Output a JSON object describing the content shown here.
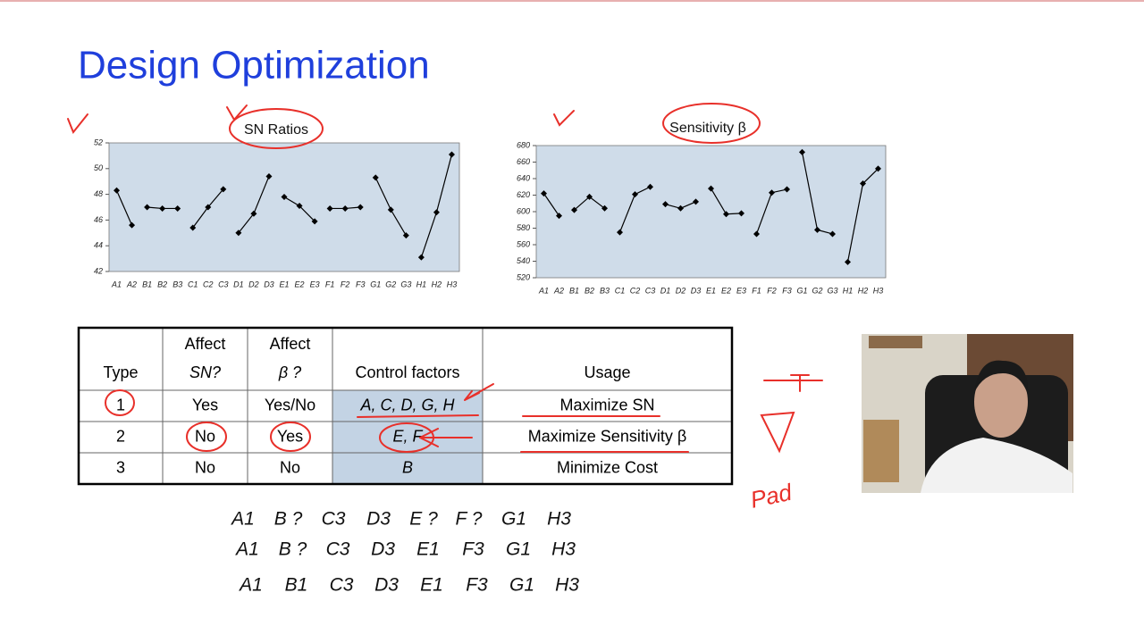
{
  "title": "Design Optimization",
  "chart_data": [
    {
      "type": "line",
      "title": "SN Ratios",
      "categories": [
        "A1",
        "A2",
        "B1",
        "B2",
        "B3",
        "C1",
        "C2",
        "C3",
        "D1",
        "D2",
        "D3",
        "E1",
        "E2",
        "E3",
        "F1",
        "F2",
        "F3",
        "G1",
        "G2",
        "G3",
        "H1",
        "H2",
        "H3"
      ],
      "color": "#000000",
      "plot_background": "#cfdce9",
      "ylim": [
        42,
        52
      ],
      "yticks": [
        42,
        44,
        46,
        48,
        50,
        52
      ],
      "series": [
        {
          "values": [
            48.3,
            45.6,
            null,
            null,
            null,
            null,
            null,
            null,
            null,
            null,
            null,
            null,
            null,
            null,
            null,
            null,
            null,
            null,
            null,
            null,
            null,
            null,
            null
          ]
        },
        {
          "values": [
            null,
            null,
            47,
            46.9,
            46.9,
            null,
            null,
            null,
            null,
            null,
            null,
            null,
            null,
            null,
            null,
            null,
            null,
            null,
            null,
            null,
            null,
            null,
            null
          ]
        },
        {
          "values": [
            null,
            null,
            null,
            null,
            null,
            45.4,
            47,
            48.4,
            null,
            null,
            null,
            null,
            null,
            null,
            null,
            null,
            null,
            null,
            null,
            null,
            null,
            null,
            null
          ]
        },
        {
          "values": [
            null,
            null,
            null,
            null,
            null,
            null,
            null,
            null,
            45,
            46.5,
            49.4,
            null,
            null,
            null,
            null,
            null,
            null,
            null,
            null,
            null,
            null,
            null,
            null
          ]
        },
        {
          "values": [
            null,
            null,
            null,
            null,
            null,
            null,
            null,
            null,
            null,
            null,
            null,
            47.8,
            47.1,
            45.9,
            null,
            null,
            null,
            null,
            null,
            null,
            null,
            null,
            null
          ]
        },
        {
          "values": [
            null,
            null,
            null,
            null,
            null,
            null,
            null,
            null,
            null,
            null,
            null,
            null,
            null,
            null,
            46.9,
            46.9,
            47,
            null,
            null,
            null,
            null,
            null,
            null
          ]
        },
        {
          "values": [
            null,
            null,
            null,
            null,
            null,
            null,
            null,
            null,
            null,
            null,
            null,
            null,
            null,
            null,
            null,
            null,
            null,
            49.3,
            46.8,
            44.8,
            null,
            null,
            null
          ]
        },
        {
          "values": [
            null,
            null,
            null,
            null,
            null,
            null,
            null,
            null,
            null,
            null,
            null,
            null,
            null,
            null,
            null,
            null,
            null,
            null,
            null,
            null,
            43.1,
            46.6,
            51.1
          ]
        }
      ]
    },
    {
      "type": "line",
      "title": "Sensitivity β",
      "categories": [
        "A1",
        "A2",
        "B1",
        "B2",
        "B3",
        "C1",
        "C2",
        "C3",
        "D1",
        "D2",
        "D3",
        "E1",
        "E2",
        "E3",
        "F1",
        "F2",
        "F3",
        "G1",
        "G2",
        "G3",
        "H1",
        "H2",
        "H3"
      ],
      "color": "#000000",
      "plot_background": "#cfdce9",
      "ylim": [
        520,
        680
      ],
      "yticks": [
        520,
        540,
        560,
        580,
        600,
        620,
        640,
        660,
        680
      ],
      "series": [
        {
          "values": [
            622,
            595,
            null,
            null,
            null,
            null,
            null,
            null,
            null,
            null,
            null,
            null,
            null,
            null,
            null,
            null,
            null,
            null,
            null,
            null,
            null,
            null,
            null
          ]
        },
        {
          "values": [
            null,
            null,
            602,
            618,
            604,
            null,
            null,
            null,
            null,
            null,
            null,
            null,
            null,
            null,
            null,
            null,
            null,
            null,
            null,
            null,
            null,
            null,
            null
          ]
        },
        {
          "values": [
            null,
            null,
            null,
            null,
            null,
            575,
            621,
            630,
            null,
            null,
            null,
            null,
            null,
            null,
            null,
            null,
            null,
            null,
            null,
            null,
            null,
            null,
            null
          ]
        },
        {
          "values": [
            null,
            null,
            null,
            null,
            null,
            null,
            null,
            null,
            609,
            604,
            612,
            null,
            null,
            null,
            null,
            null,
            null,
            null,
            null,
            null,
            null,
            null,
            null
          ]
        },
        {
          "values": [
            null,
            null,
            null,
            null,
            null,
            null,
            null,
            null,
            null,
            null,
            null,
            628,
            597,
            598,
            null,
            null,
            null,
            null,
            null,
            null,
            null,
            null,
            null
          ]
        },
        {
          "values": [
            null,
            null,
            null,
            null,
            null,
            null,
            null,
            null,
            null,
            null,
            null,
            null,
            null,
            null,
            573,
            623,
            627,
            null,
            null,
            null,
            null,
            null,
            null
          ]
        },
        {
          "values": [
            null,
            null,
            null,
            null,
            null,
            null,
            null,
            null,
            null,
            null,
            null,
            null,
            null,
            null,
            null,
            null,
            null,
            672,
            578,
            573,
            null,
            null,
            null
          ]
        },
        {
          "values": [
            null,
            null,
            null,
            null,
            null,
            null,
            null,
            null,
            null,
            null,
            null,
            null,
            null,
            null,
            null,
            null,
            null,
            null,
            null,
            null,
            539,
            634,
            652
          ]
        }
      ]
    }
  ],
  "table": {
    "header": [
      [
        "Type"
      ],
      [
        "Affect",
        "SN?"
      ],
      [
        "Affect",
        "β ?"
      ],
      [
        "Control factors"
      ],
      [
        "Usage"
      ]
    ],
    "rows": [
      [
        "1",
        "Yes",
        "Yes/No",
        "A, C, D, G, H",
        "Maximize SN"
      ],
      [
        "2",
        "No",
        "Yes",
        "E, F",
        "Maximize Sensitivity β"
      ],
      [
        "3",
        "No",
        "No",
        "B",
        "Minimize Cost"
      ]
    ]
  },
  "lines": [
    [
      "A1",
      "B ?",
      "C3",
      "D3",
      "E ?",
      "F ?",
      "G1",
      "H3"
    ],
    [
      "A1",
      "B ?",
      "C3",
      "D3",
      "E1",
      "F3",
      "G1",
      "H3"
    ],
    [
      "A1",
      "B1",
      "C3",
      "D3",
      "E1",
      "F3",
      "G1",
      "H3"
    ]
  ],
  "annotation": "Pad"
}
